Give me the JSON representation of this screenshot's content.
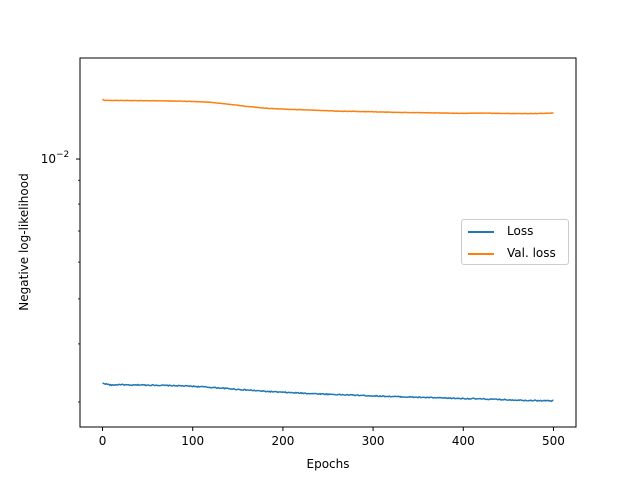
{
  "colors": {
    "loss": "#1f77b4",
    "val_loss": "#ff7f0e",
    "axes": "#000000",
    "background": "#ffffff"
  },
  "legend": {
    "placement": "center-right",
    "entries": [
      {
        "label": "Loss",
        "color": "#1f77b4"
      },
      {
        "label": "Val. loss",
        "color": "#ff7f0e"
      }
    ]
  },
  "chart_data": {
    "type": "line",
    "title": "",
    "xlabel": "Epochs",
    "ylabel": "Negative log-likelihood",
    "xlim": [
      -25,
      525
    ],
    "ylim": [
      0.00265,
      0.0165
    ],
    "yscale": "log",
    "grid": false,
    "x_ticks": [
      0,
      100,
      200,
      300,
      400,
      500
    ],
    "x_tick_labels": [
      "0",
      "100",
      "200",
      "300",
      "400",
      "500"
    ],
    "y_major_ticks": [
      0.01
    ],
    "y_major_tick_labels": [
      "10^-2"
    ],
    "y_minor_ticks": [
      0.003,
      0.004,
      0.005,
      0.006,
      0.007,
      0.008,
      0.009
    ],
    "series": [
      {
        "name": "Loss",
        "color": "#1f77b4",
        "x": [
          0,
          10,
          20,
          30,
          40,
          50,
          60,
          70,
          80,
          90,
          100,
          110,
          120,
          130,
          140,
          150,
          160,
          170,
          180,
          190,
          200,
          220,
          240,
          260,
          280,
          300,
          320,
          340,
          360,
          380,
          400,
          420,
          440,
          460,
          480,
          500
        ],
        "y": [
          0.003293,
          0.00326,
          0.003272,
          0.003258,
          0.003265,
          0.003262,
          0.00326,
          0.003255,
          0.003252,
          0.003248,
          0.003242,
          0.003235,
          0.003225,
          0.003215,
          0.003205,
          0.003193,
          0.003183,
          0.003173,
          0.003163,
          0.003155,
          0.003147,
          0.003135,
          0.003123,
          0.003112,
          0.003103,
          0.003092,
          0.003083,
          0.003074,
          0.003067,
          0.003058,
          0.003052,
          0.003045,
          0.003037,
          0.003028,
          0.003021,
          0.003017
        ],
        "noise": 0.0025
      },
      {
        "name": "Val. loss",
        "color": "#ff7f0e",
        "x": [
          0,
          2,
          10,
          20,
          40,
          60,
          80,
          100,
          120,
          140,
          160,
          180,
          200,
          220,
          240,
          260,
          280,
          300,
          320,
          340,
          360,
          380,
          400,
          420,
          440,
          460,
          480,
          500
        ],
        "y": [
          0.01346,
          0.01338,
          0.01337,
          0.01337,
          0.01336,
          0.01335,
          0.01333,
          0.0133,
          0.01325,
          0.01312,
          0.01298,
          0.01287,
          0.01281,
          0.01277,
          0.01273,
          0.01268,
          0.01266,
          0.01264,
          0.01261,
          0.01259,
          0.01258,
          0.01256,
          0.01254,
          0.01256,
          0.01254,
          0.01253,
          0.01253,
          0.01256
        ],
        "noise": 0.0008
      }
    ]
  }
}
